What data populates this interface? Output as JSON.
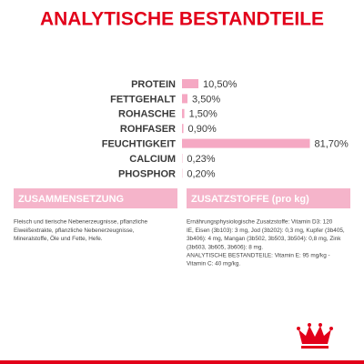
{
  "chart_data": {
    "type": "bar",
    "orientation": "horizontal",
    "title": "ANALYTISCHE BESTANDTEILE",
    "categories": [
      "PROTEIN",
      "FETTGEHALT",
      "ROHASCHE",
      "ROHFASER",
      "FEUCHTIGKEIT",
      "CALCIUM",
      "PHOSPHOR"
    ],
    "values": [
      10.5,
      3.5,
      1.5,
      0.9,
      81.7,
      0.23,
      0.2
    ],
    "value_labels": [
      "10,50%",
      "3,50%",
      "1,50%",
      "0,90%",
      "81,70%",
      "0,23%",
      "0,20%"
    ],
    "color": "#f5a8c3"
  },
  "sections": [
    {
      "heading": "ZUSAMMENSETZUNG",
      "lines": [
        "Fleisch und tierische Nebenerzeugnisse, pflanzliche",
        "Eiweißextrakte, pflanzliche Nebenerzeugnisse,",
        "Mineralstoffe, Öle und Fette, Hefe."
      ]
    },
    {
      "heading": "ZUSATZSTOFFE (pro kg)",
      "lines": [
        "Ernährungsphysiologische Zusatzstoffe: Vitamin D3: 120",
        "IE, Eisen (3b103): 3 mg, Jod (3b202): 0,3 mg, Kupfer (3b405,",
        "3b406): 4 mg, Mangan (3b502, 3b503, 3b504): 0,8 mg, Zink",
        "(3b603, 3b605, 3b606): 8 mg.",
        "ANALYTISCHE BESTANDTEILE: Vitamin E: 95 mg/kg -",
        "Vitamin C: 40 mg/kg."
      ]
    }
  ]
}
